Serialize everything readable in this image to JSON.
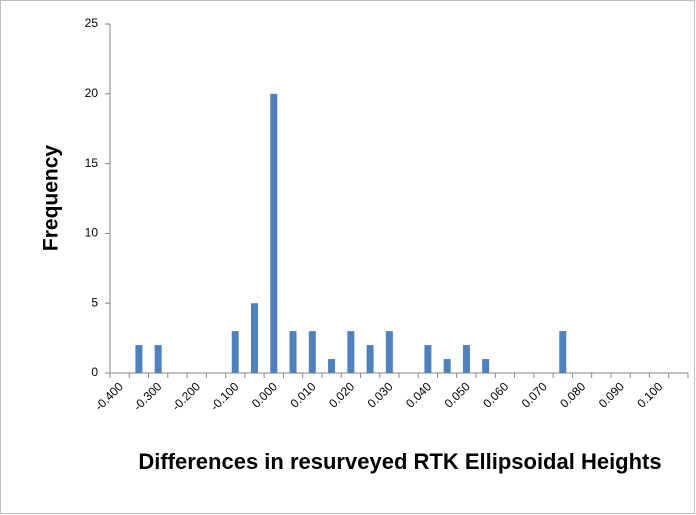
{
  "chart_data": {
    "type": "bar",
    "y_label": "Frequency",
    "x_label": "Differences in resurveyed RTK Ellipsoidal Heights",
    "categories": [
      "-0.400",
      null,
      "-0.300",
      null,
      "-0.200",
      null,
      "-0.100",
      null,
      "0.000",
      null,
      "0.010",
      null,
      "0.020",
      null,
      "0.030",
      null,
      "0.040",
      null,
      "0.050",
      null,
      "0.060",
      null,
      "0.070",
      null,
      "0.080",
      null,
      "0.090",
      null,
      "0.100",
      null
    ],
    "values": [
      0,
      2,
      2,
      0,
      0,
      0,
      3,
      5,
      20,
      3,
      3,
      1,
      3,
      2,
      3,
      0,
      2,
      1,
      2,
      1,
      0,
      0,
      0,
      3,
      0,
      0,
      0,
      0,
      0,
      0
    ],
    "color": "#4f81bd",
    "ylim": [
      0,
      25
    ],
    "yticks": [
      0,
      5,
      10,
      15,
      20,
      25
    ],
    "grid": false
  }
}
